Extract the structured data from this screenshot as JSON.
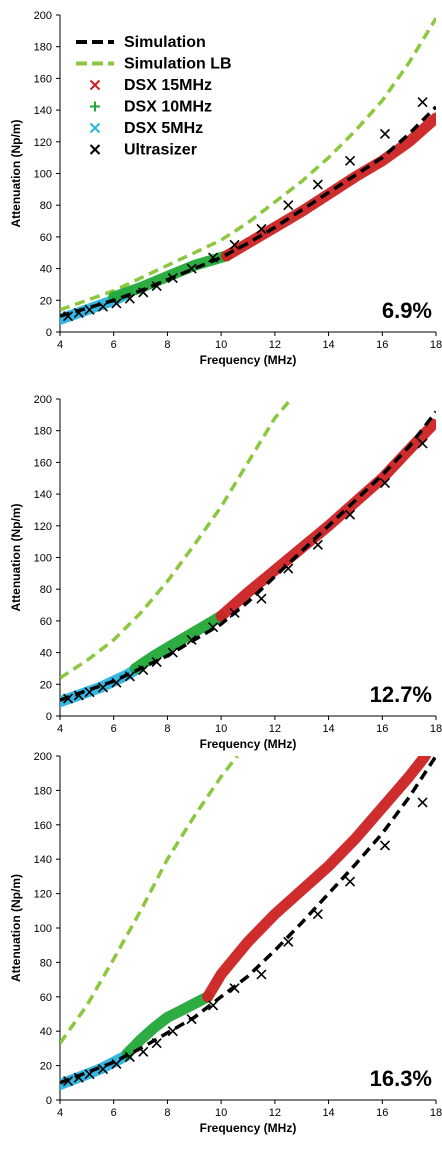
{
  "chart_data": [
    {
      "type": "line",
      "xlabel": "Frequency (MHz)",
      "ylabel": "Attenuation (Np/m)",
      "xlim": [
        4,
        18
      ],
      "ylim": [
        0,
        200
      ],
      "xticks": [
        4,
        6,
        8,
        10,
        12,
        14,
        16,
        18
      ],
      "yticks": [
        0,
        20,
        40,
        60,
        80,
        100,
        120,
        140,
        160,
        180,
        200
      ],
      "annotation": "6.9%",
      "legend_position": "top-left",
      "series": [
        {
          "name": "Simulation",
          "kind": "dashed-line",
          "color": "#000000",
          "x": [
            4,
            5,
            6,
            7,
            8,
            9,
            10,
            11,
            12,
            13,
            14,
            15,
            16,
            17,
            18
          ],
          "y": [
            10,
            15,
            20,
            26,
            33,
            40,
            47,
            56,
            66,
            77,
            88,
            99,
            110,
            125,
            142
          ]
        },
        {
          "name": "Simulation LB",
          "kind": "dashed-line",
          "color": "#8dc63f",
          "x": [
            4,
            5,
            6,
            7,
            8,
            9,
            10,
            11,
            12,
            13,
            14,
            15,
            16,
            17,
            18
          ],
          "y": [
            14,
            20,
            26,
            34,
            42,
            50,
            58,
            69,
            82,
            95,
            110,
            127,
            146,
            170,
            198
          ]
        },
        {
          "name": "DSX 15MHz",
          "kind": "band",
          "color": "#cc2222",
          "x": [
            10.2,
            11,
            12,
            13,
            14,
            15,
            16,
            17,
            18
          ],
          "y": [
            48,
            56,
            66,
            76,
            87,
            98,
            108,
            120,
            135
          ]
        },
        {
          "name": "DSX 10MHz",
          "kind": "band",
          "color": "#22a838",
          "x": [
            6,
            7,
            8,
            9,
            10.2
          ],
          "y": [
            22,
            28,
            35,
            42,
            48
          ]
        },
        {
          "name": "DSX 5MHz",
          "kind": "band",
          "color": "#2ab3e0",
          "x": [
            4,
            4.5,
            5,
            5.5,
            6,
            6.5
          ],
          "y": [
            8,
            11,
            14,
            17,
            20,
            24
          ]
        },
        {
          "name": "Ultrasizer",
          "kind": "x-markers",
          "color": "#000000",
          "x": [
            4.3,
            4.7,
            5.1,
            5.6,
            6.1,
            6.6,
            7.1,
            7.6,
            8.2,
            8.9,
            9.7,
            10.5,
            11.5,
            12.5,
            13.6,
            14.8,
            16.1,
            17.5
          ],
          "y": [
            10,
            12,
            14,
            16,
            18,
            21,
            25,
            29,
            34,
            40,
            47,
            55,
            65,
            80,
            93,
            108,
            125,
            145
          ]
        }
      ]
    },
    {
      "type": "line",
      "xlabel": "Frequency (MHz)",
      "ylabel": "Attenuation (Np/m)",
      "xlim": [
        4,
        18
      ],
      "ylim": [
        0,
        200
      ],
      "xticks": [
        4,
        6,
        8,
        10,
        12,
        14,
        16,
        18
      ],
      "yticks": [
        0,
        20,
        40,
        60,
        80,
        100,
        120,
        140,
        160,
        180,
        200
      ],
      "annotation": "12.7%",
      "series": [
        {
          "name": "Simulation",
          "kind": "dashed-line",
          "color": "#000000",
          "x": [
            4,
            5,
            6,
            7,
            8,
            9,
            10,
            11,
            12,
            13,
            14,
            15,
            16,
            17,
            18
          ],
          "y": [
            10,
            16,
            22,
            30,
            38,
            48,
            58,
            72,
            88,
            104,
            120,
            136,
            152,
            170,
            192
          ]
        },
        {
          "name": "Simulation LB",
          "kind": "dashed-line",
          "color": "#8dc63f",
          "x": [
            4,
            5,
            6,
            7,
            8,
            9,
            10,
            11,
            12,
            12.6
          ],
          "y": [
            24,
            35,
            48,
            65,
            85,
            108,
            132,
            160,
            188,
            200
          ]
        },
        {
          "name": "DSX 15MHz",
          "kind": "band",
          "color": "#cc2222",
          "x": [
            10,
            11,
            12,
            13,
            14,
            15,
            16,
            17,
            17.9
          ],
          "y": [
            63,
            78,
            92,
            106,
            120,
            135,
            150,
            168,
            184
          ]
        },
        {
          "name": "DSX 10MHz",
          "kind": "band",
          "color": "#22a838",
          "x": [
            6.8,
            7.5,
            8,
            8.5,
            9,
            9.5,
            10
          ],
          "y": [
            30,
            38,
            43,
            48,
            53,
            58,
            63
          ]
        },
        {
          "name": "DSX 5MHz",
          "kind": "band",
          "color": "#2ab3e0",
          "x": [
            4,
            4.5,
            5,
            5.5,
            6,
            6.5,
            6.8
          ],
          "y": [
            9,
            12,
            15,
            18,
            22,
            26,
            29
          ]
        },
        {
          "name": "Ultrasizer",
          "kind": "x-markers",
          "color": "#000000",
          "x": [
            4.3,
            4.7,
            5.1,
            5.6,
            6.1,
            6.6,
            7.1,
            7.6,
            8.2,
            8.9,
            9.7,
            10.5,
            11.5,
            12.5,
            13.6,
            14.8,
            16.1,
            17.5
          ],
          "y": [
            11,
            13,
            15,
            18,
            21,
            25,
            29,
            34,
            40,
            48,
            56,
            65,
            74,
            93,
            108,
            127,
            147,
            172
          ]
        }
      ]
    },
    {
      "type": "line",
      "xlabel": "Frequency (MHz)",
      "ylabel": "Attenuation (Np/m)",
      "xlim": [
        4,
        18
      ],
      "ylim": [
        0,
        200
      ],
      "xticks": [
        4,
        6,
        8,
        10,
        12,
        14,
        16,
        18
      ],
      "yticks": [
        0,
        20,
        40,
        60,
        80,
        100,
        120,
        140,
        160,
        180,
        200
      ],
      "annotation": "16.3%",
      "series": [
        {
          "name": "Simulation",
          "kind": "dashed-line",
          "color": "#000000",
          "x": [
            4,
            5,
            6,
            7,
            8,
            9,
            10,
            11,
            12,
            13,
            14,
            15,
            16,
            17,
            18
          ],
          "y": [
            10,
            16,
            22,
            30,
            39,
            48,
            60,
            72,
            87,
            103,
            120,
            137,
            155,
            176,
            200
          ]
        },
        {
          "name": "Simulation LB",
          "kind": "dashed-line",
          "color": "#8dc63f",
          "x": [
            4,
            5,
            6,
            7,
            8,
            9,
            10,
            10.6
          ],
          "y": [
            33,
            55,
            82,
            110,
            140,
            165,
            188,
            200
          ]
        },
        {
          "name": "DSX 15MHz",
          "kind": "band",
          "color": "#cc2222",
          "x": [
            9.5,
            10,
            11,
            12,
            13,
            14,
            15,
            16,
            17,
            17.6
          ],
          "y": [
            60,
            73,
            92,
            108,
            122,
            136,
            152,
            170,
            188,
            200
          ]
        },
        {
          "name": "DSX 10MHz",
          "kind": "band",
          "color": "#22a838",
          "x": [
            6.5,
            7,
            7.5,
            8,
            8.5,
            9,
            9.5
          ],
          "y": [
            27,
            35,
            42,
            48,
            52,
            56,
            60
          ]
        },
        {
          "name": "DSX 5MHz",
          "kind": "band",
          "color": "#2ab3e0",
          "x": [
            4,
            4.5,
            5,
            5.5,
            6,
            6.5
          ],
          "y": [
            9,
            12,
            15,
            18,
            22,
            26
          ]
        },
        {
          "name": "Ultrasizer",
          "kind": "x-markers",
          "color": "#000000",
          "x": [
            4.3,
            4.7,
            5.1,
            5.6,
            6.1,
            6.6,
            7.1,
            7.6,
            8.2,
            8.9,
            9.7,
            10.5,
            11.5,
            12.5,
            13.6,
            14.8,
            16.1,
            17.5
          ],
          "y": [
            11,
            13,
            15,
            18,
            21,
            25,
            28,
            33,
            40,
            47,
            55,
            65,
            73,
            92,
            108,
            127,
            148,
            173
          ]
        }
      ]
    }
  ]
}
